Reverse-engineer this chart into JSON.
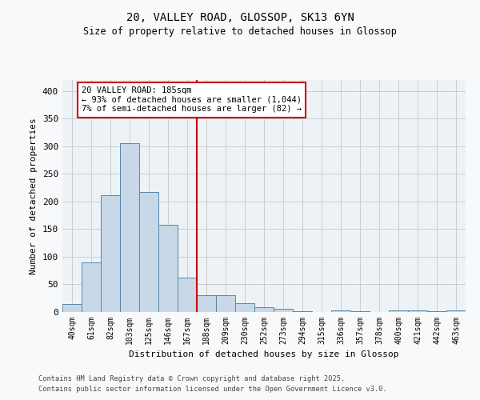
{
  "title1": "20, VALLEY ROAD, GLOSSOP, SK13 6YN",
  "title2": "Size of property relative to detached houses in Glossop",
  "xlabel": "Distribution of detached houses by size in Glossop",
  "ylabel": "Number of detached properties",
  "bar_labels": [
    "40sqm",
    "61sqm",
    "82sqm",
    "103sqm",
    "125sqm",
    "146sqm",
    "167sqm",
    "188sqm",
    "209sqm",
    "230sqm",
    "252sqm",
    "273sqm",
    "294sqm",
    "315sqm",
    "336sqm",
    "357sqm",
    "378sqm",
    "400sqm",
    "421sqm",
    "442sqm",
    "463sqm"
  ],
  "bar_values": [
    14,
    90,
    212,
    305,
    217,
    158,
    63,
    30,
    30,
    16,
    9,
    6,
    1,
    0,
    3,
    1,
    0,
    3,
    3,
    1,
    3
  ],
  "bar_color": "#c8d8e8",
  "bar_edge_color": "#5588aa",
  "vline_color": "#cc0000",
  "annotation_text": "20 VALLEY ROAD: 185sqm\n← 93% of detached houses are smaller (1,044)\n7% of semi-detached houses are larger (82) →",
  "annotation_box_color": "#ffffff",
  "annotation_box_edge": "#cc0000",
  "ylim": [
    0,
    420
  ],
  "yticks": [
    0,
    50,
    100,
    150,
    200,
    250,
    300,
    350,
    400
  ],
  "grid_color": "#cccccc",
  "bg_color": "#edf2f7",
  "fig_bg_color": "#f8f9fa",
  "footer1": "Contains HM Land Registry data © Crown copyright and database right 2025.",
  "footer2": "Contains public sector information licensed under the Open Government Licence v3.0."
}
